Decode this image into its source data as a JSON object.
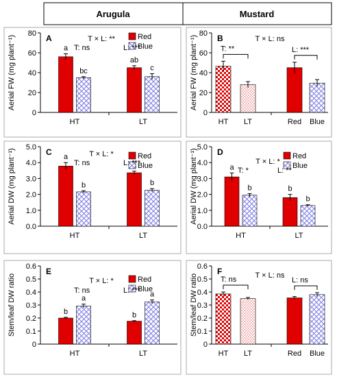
{
  "header": {
    "col1": "Arugula",
    "col2": "Mustard"
  },
  "colors": {
    "red": "#e00000",
    "blue": "#7f7fe6",
    "error": "#000000"
  },
  "chart_data": [
    {
      "panel": "A",
      "type": "bar",
      "layout": "by-temperature",
      "ylabel": "Aerial FW (mg plant⁻¹)",
      "ylim": [
        0,
        80
      ],
      "yticks": [
        0,
        20,
        40,
        60,
        80
      ],
      "categories": [
        "HT",
        "LT"
      ],
      "series": [
        {
          "name": "Red",
          "values": [
            56,
            45
          ],
          "errors": [
            3,
            2
          ],
          "letters": [
            "a",
            "ab"
          ]
        },
        {
          "name": "Blue",
          "values": [
            35,
            36
          ],
          "errors": [
            1,
            3
          ],
          "letters": [
            "bc",
            "c"
          ]
        }
      ],
      "stats": [
        "T × L: **",
        "T: ns",
        "L: ***"
      ],
      "legend": [
        "Red",
        "Blue"
      ]
    },
    {
      "panel": "B",
      "type": "bar",
      "layout": "main-effects",
      "ylabel": "Aerial FW (mg plant⁻¹)",
      "ylim": [
        0,
        80
      ],
      "yticks": [
        0,
        20,
        40,
        60,
        80
      ],
      "categories": [
        "HT",
        "LT",
        "Red",
        "Blue"
      ],
      "values": [
        46.5,
        28,
        45,
        29.5
      ],
      "errors": [
        5,
        3,
        5.5,
        3.5
      ],
      "fills": [
        "check",
        "dots",
        "red",
        "blue"
      ],
      "stats": [
        "T × L: ns"
      ],
      "brackets": [
        "T: **",
        "L: ***"
      ]
    },
    {
      "panel": "C",
      "type": "bar",
      "layout": "by-temperature",
      "ylabel": "Aerial DW (mg plant⁻¹)",
      "ylim": [
        0,
        5.0
      ],
      "yticks": [
        0.0,
        1.0,
        2.0,
        3.0,
        4.0,
        5.0
      ],
      "categories": [
        "HT",
        "LT"
      ],
      "series": [
        {
          "name": "Red",
          "values": [
            3.78,
            3.36
          ],
          "errors": [
            0.22,
            0.1
          ],
          "letters": [
            "a",
            "a"
          ]
        },
        {
          "name": "Blue",
          "values": [
            2.16,
            2.26
          ],
          "errors": [
            0.07,
            0.1
          ],
          "letters": [
            "b",
            "b"
          ]
        }
      ],
      "stats": [
        "T × L: *",
        "T: ns",
        "L: ***"
      ],
      "legend": [
        "Red",
        "Blue"
      ]
    },
    {
      "panel": "D",
      "type": "bar",
      "layout": "by-temperature",
      "ylabel": "Aerial DW (mg plant⁻¹)",
      "ylim": [
        0,
        5.0
      ],
      "yticks": [
        0.0,
        1.0,
        2.0,
        3.0,
        4.0,
        5.0
      ],
      "categories": [
        "HT",
        "LT"
      ],
      "series": [
        {
          "name": "Red",
          "values": [
            3.1,
            1.8
          ],
          "errors": [
            0.25,
            0.2
          ],
          "letters": [
            "a",
            "b"
          ]
        },
        {
          "name": "Blue",
          "values": [
            1.95,
            1.3
          ],
          "errors": [
            0.1,
            0.05
          ],
          "letters": [
            "b",
            "b"
          ]
        }
      ],
      "stats": [
        "T × L: *",
        "T: *",
        "L: **"
      ],
      "legend": [
        "Red",
        "Blue"
      ]
    },
    {
      "panel": "E",
      "type": "bar",
      "layout": "by-temperature",
      "ylabel": "Stem/leaf DW ratio",
      "ylim": [
        0,
        0.6
      ],
      "yticks": [
        0,
        0.1,
        0.2,
        0.3,
        0.4,
        0.5,
        0.6
      ],
      "categories": [
        "HT",
        "LT"
      ],
      "series": [
        {
          "name": "Red",
          "values": [
            0.2,
            0.176
          ],
          "errors": [
            0.006,
            0.004
          ],
          "letters": [
            "b",
            "b"
          ]
        },
        {
          "name": "Blue",
          "values": [
            0.293,
            0.325
          ],
          "errors": [
            0.014,
            0.014
          ],
          "letters": [
            "a",
            "a"
          ]
        }
      ],
      "stats": [
        "T × L: *",
        "T: ns",
        "L: ***"
      ],
      "legend": [
        "Red",
        "Blue"
      ]
    },
    {
      "panel": "F",
      "type": "bar",
      "layout": "main-effects",
      "ylabel": "Stem/leaf DW ratio",
      "ylim": [
        0,
        0.6
      ],
      "yticks": [
        0,
        0.1,
        0.2,
        0.3,
        0.4,
        0.5,
        0.6
      ],
      "categories": [
        "HT",
        "LT",
        "Red",
        "Blue"
      ],
      "values": [
        0.385,
        0.35,
        0.355,
        0.38
      ],
      "errors": [
        0.015,
        0.008,
        0.01,
        0.015
      ],
      "fills": [
        "check",
        "dots",
        "red",
        "blue"
      ],
      "stats": [
        "T × L: ns"
      ],
      "brackets": [
        "T: ns",
        "L: ns"
      ]
    }
  ]
}
